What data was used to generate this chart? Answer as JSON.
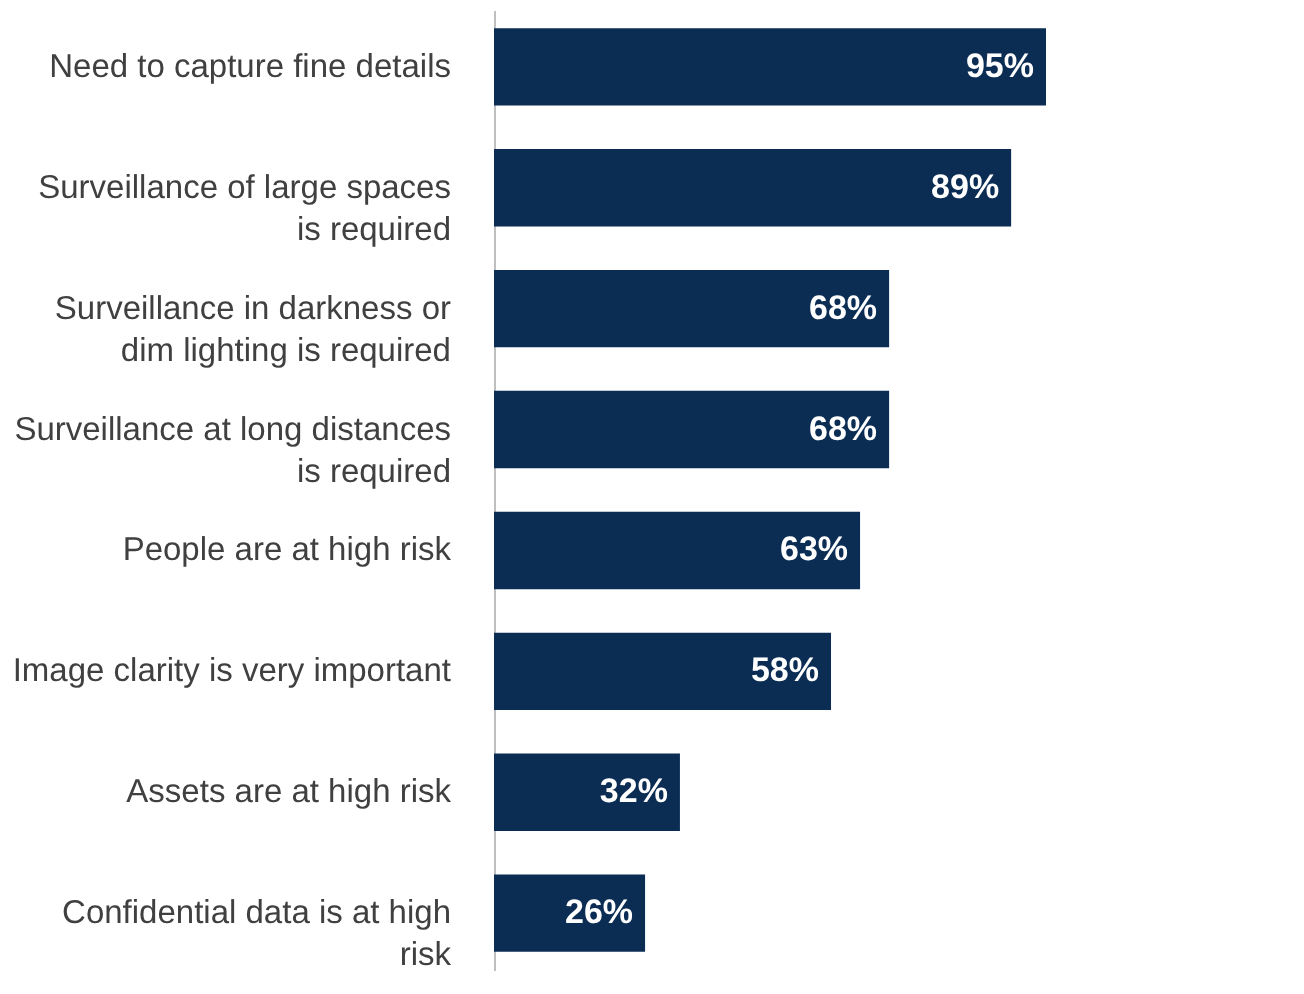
{
  "chart_data": {
    "type": "bar",
    "orientation": "horizontal",
    "data_labels": true,
    "color": "#0b2d54",
    "categories": [
      "Need to capture fine details",
      "Surveillance of large spaces is required",
      "Surveillance in darkness or dim lighting is required",
      "Surveillance at long distances is required",
      "People are at high risk",
      "Image clarity is very important",
      "Assets are at high risk",
      "Confidential data is at high risk"
    ],
    "values": [
      95,
      89,
      68,
      68,
      63,
      58,
      32,
      26
    ],
    "value_labels": [
      "95%",
      "89%",
      "68%",
      "68%",
      "63%",
      "58%",
      "32%",
      "26%"
    ]
  }
}
